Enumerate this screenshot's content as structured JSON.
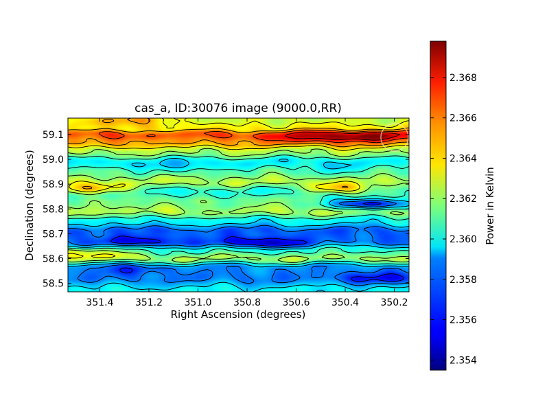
{
  "chart_data": {
    "type": "heatmap",
    "title": "cas_a, ID:30076 image (9000.0,RR)",
    "xlabel": "Right Ascension (degrees)",
    "ylabel": "Declination (degrees)",
    "xlim": [
      351.53,
      350.14
    ],
    "ylim": [
      58.466,
      59.166
    ],
    "x_ticks": [
      351.4,
      351.2,
      351.0,
      350.8,
      350.6,
      350.4,
      350.2
    ],
    "x_tick_labels": [
      "351.4",
      "351.2",
      "351.0",
      "350.8",
      "350.6",
      "350.4",
      "350.2"
    ],
    "y_ticks": [
      58.5,
      58.6,
      58.7,
      58.8,
      58.9,
      59.0,
      59.1
    ],
    "y_tick_labels": [
      "58.5",
      "58.6",
      "58.7",
      "58.8",
      "58.9",
      "59.0",
      "59.1"
    ],
    "colormap": "jet",
    "contours": true,
    "colorbar": {
      "label": "Power in Kelvin",
      "range": [
        2.3535,
        2.3698
      ],
      "ticks": [
        2.354,
        2.356,
        2.358,
        2.36,
        2.362,
        2.364,
        2.366,
        2.368
      ],
      "tick_labels": [
        "2.354",
        "2.356",
        "2.358",
        "2.360",
        "2.362",
        "2.364",
        "2.366",
        "2.368"
      ]
    },
    "dec_band_profile": {
      "dec": [
        58.47,
        58.52,
        58.56,
        58.6,
        58.63,
        58.67,
        58.71,
        58.75,
        58.79,
        58.83,
        58.87,
        58.91,
        58.95,
        58.99,
        59.03,
        59.07,
        59.1,
        59.13,
        59.16
      ],
      "power": [
        2.3595,
        2.3575,
        2.3578,
        2.3622,
        2.3605,
        2.3572,
        2.357,
        2.3595,
        2.3625,
        2.3615,
        2.36,
        2.3625,
        2.3612,
        2.3595,
        2.3622,
        2.3652,
        2.3665,
        2.3638,
        2.3628
      ]
    },
    "features": [
      {
        "ra": 350.55,
        "dec": 59.09,
        "power": 2.3688
      },
      {
        "ra": 350.3,
        "dec": 59.095,
        "power": 2.3696
      },
      {
        "ra": 351.3,
        "dec": 59.16,
        "power": 2.3655
      },
      {
        "ra": 350.75,
        "dec": 58.66,
        "power": 2.3545
      },
      {
        "ra": 351.25,
        "dec": 58.665,
        "power": 2.3552
      },
      {
        "ra": 350.3,
        "dec": 58.82,
        "power": 2.3552
      },
      {
        "ra": 351.28,
        "dec": 58.555,
        "power": 2.3565
      },
      {
        "ra": 350.25,
        "dec": 58.52,
        "power": 2.3555
      },
      {
        "ra": 351.45,
        "dec": 58.88,
        "power": 2.3645
      },
      {
        "ra": 350.4,
        "dec": 58.88,
        "power": 2.364
      },
      {
        "ra": 351.47,
        "dec": 58.62,
        "power": 2.3638
      },
      {
        "ra": 350.9,
        "dec": 58.8,
        "power": 2.3618
      },
      {
        "ra": 351.1,
        "dec": 58.97,
        "power": 2.3588
      },
      {
        "ra": 350.45,
        "dec": 58.96,
        "power": 2.3598
      }
    ]
  }
}
